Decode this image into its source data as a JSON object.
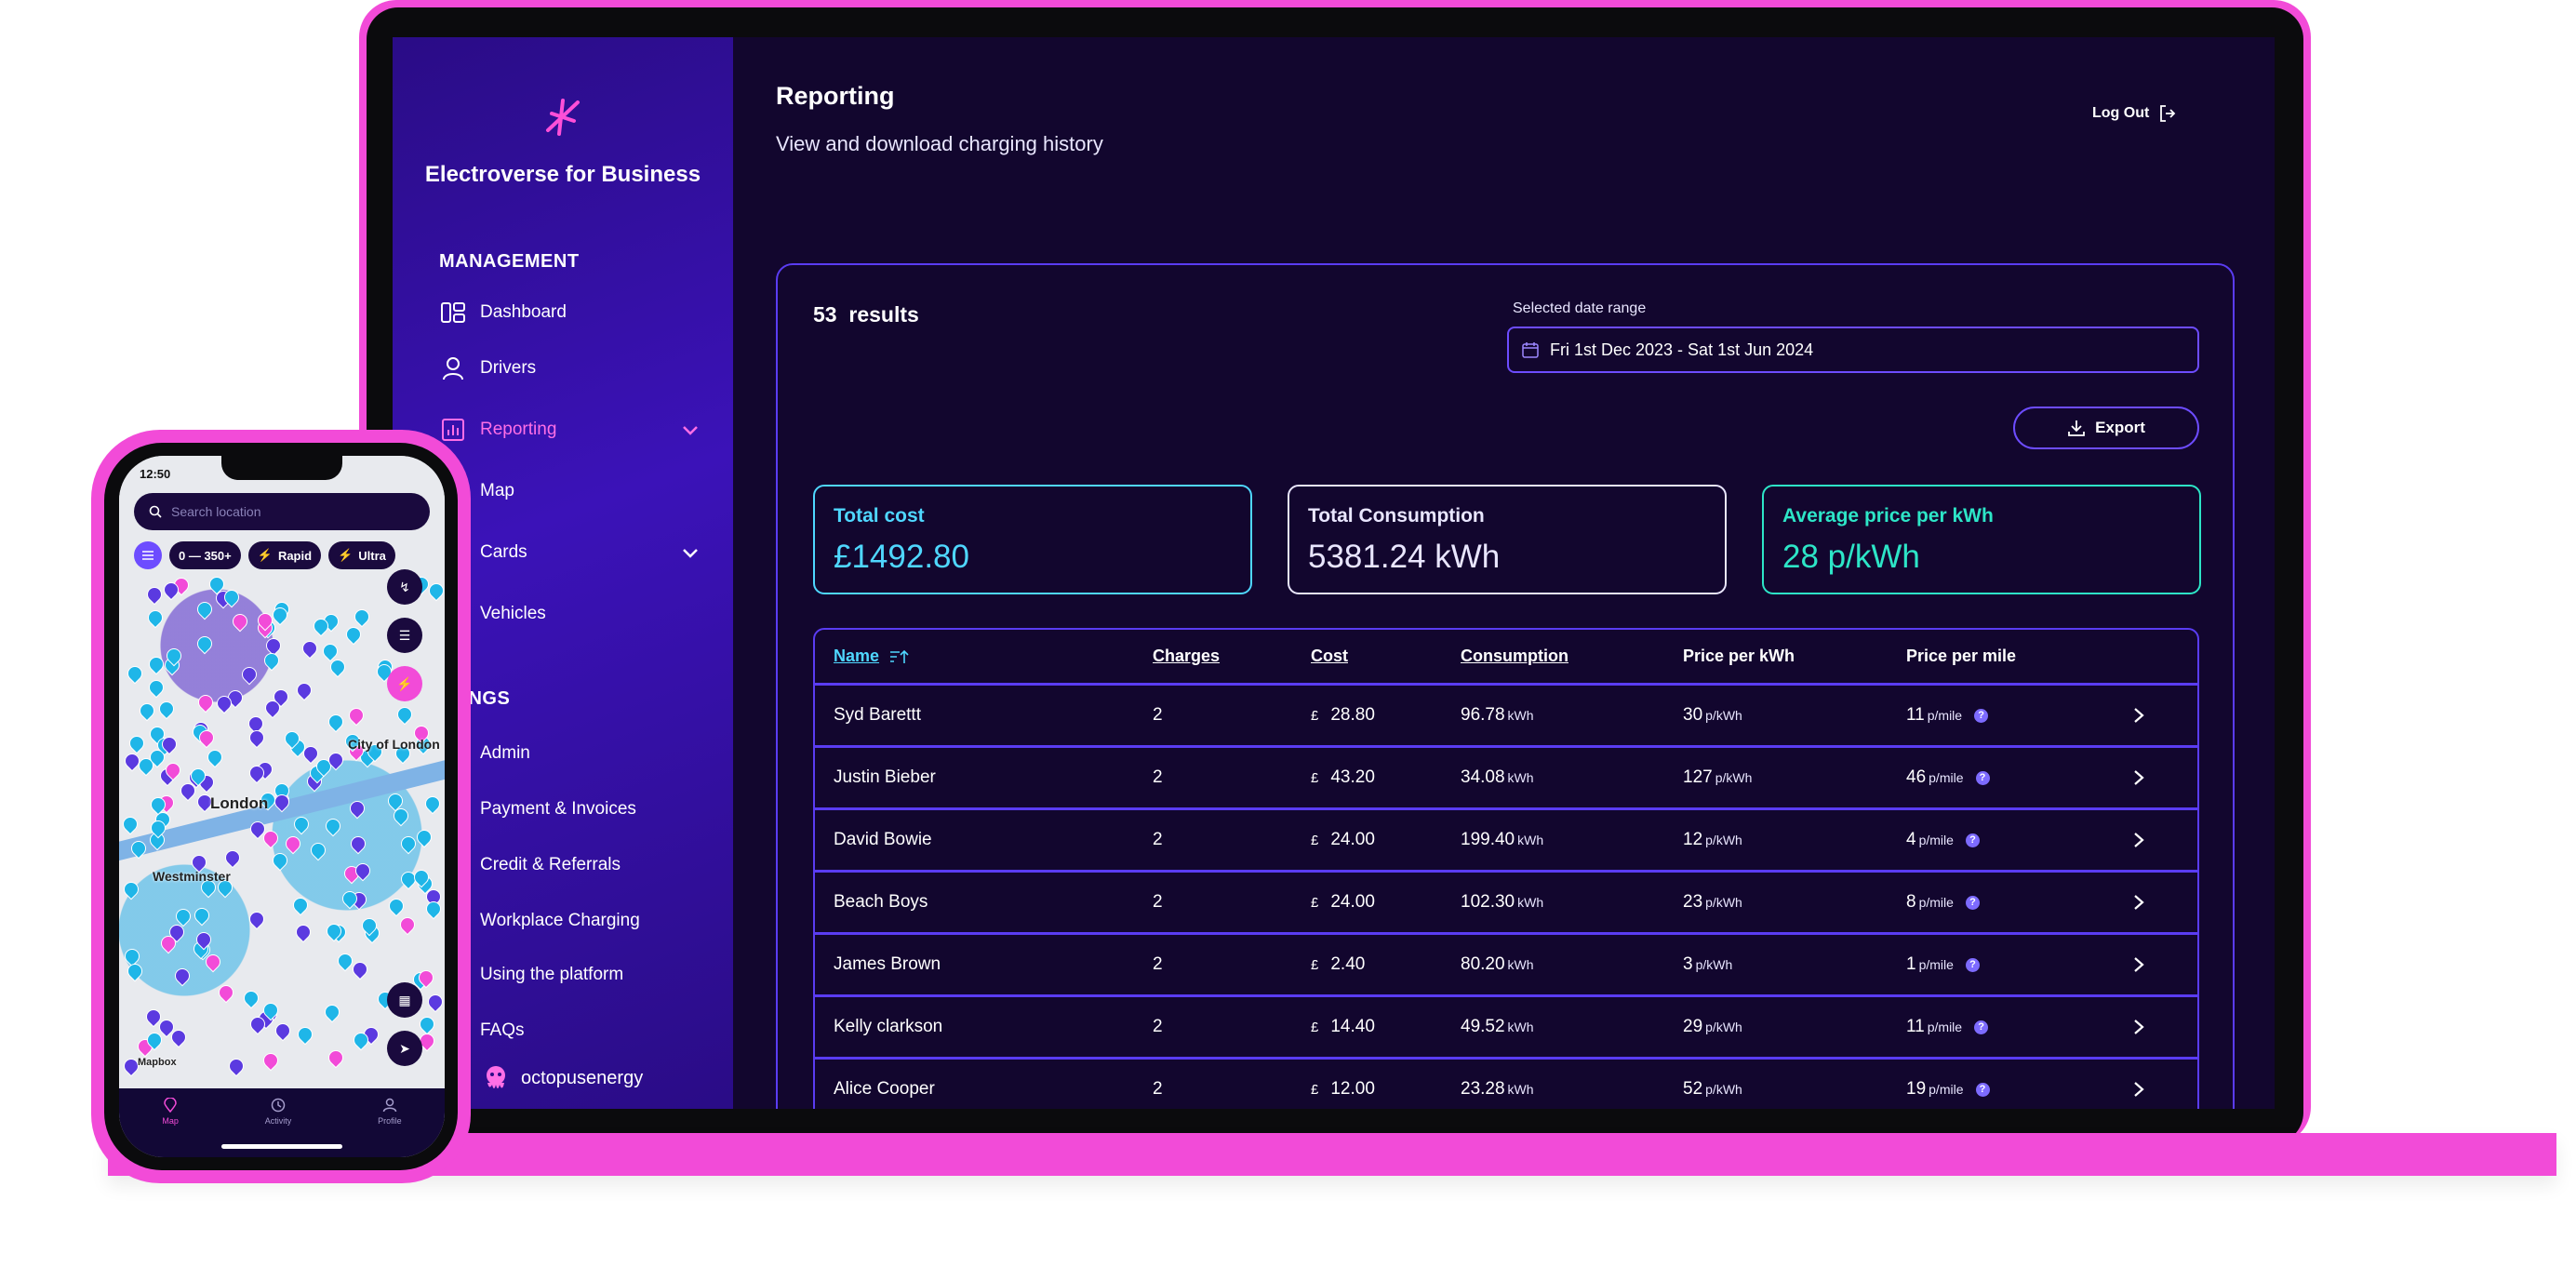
{
  "app": {
    "brand": "Electroverse for Business",
    "footer_brand": "octopusenergy"
  },
  "sidebar": {
    "management_heading": "MANAGEMENT",
    "settings_heading": "TTINGS",
    "items": [
      {
        "label": "Dashboard",
        "icon": "dashboard-icon"
      },
      {
        "label": "Drivers",
        "icon": "user-icon"
      },
      {
        "label": "Reporting",
        "icon": "bar-chart-icon",
        "active": true
      },
      {
        "label": "Map",
        "icon": "map-icon"
      },
      {
        "label": "Cards",
        "icon": "card-icon"
      },
      {
        "label": "Vehicles",
        "icon": "car-icon"
      }
    ],
    "settings_items": [
      {
        "label": "Admin"
      },
      {
        "label": "Payment & Invoices"
      },
      {
        "label": "Credit & Referrals"
      },
      {
        "label": "Workplace Charging"
      },
      {
        "label": "Using the platform"
      },
      {
        "label": "FAQs"
      }
    ]
  },
  "header": {
    "title": "Reporting",
    "subtitle": "View and download charging history",
    "logout_label": "Log Out"
  },
  "report": {
    "results_count": "53",
    "results_label": "results",
    "date_range_label": "Selected date range",
    "date_range_value": "Fri 1st Dec 2023 - Sat 1st Jun 2024",
    "export_label": "Export"
  },
  "stats": {
    "total_cost": {
      "label": "Total cost",
      "value": "£1492.80"
    },
    "total_consumption": {
      "label": "Total Consumption",
      "value": "5381.24 kWh"
    },
    "avg_price": {
      "label": "Average price per kWh",
      "value": "28 p/kWh"
    }
  },
  "table": {
    "columns": [
      "Name",
      "Charges",
      "Cost",
      "Consumption",
      "Price per kWh",
      "Price per mile"
    ],
    "rows": [
      {
        "name": "Syd Barettt",
        "charges": "2",
        "cost": "28.80",
        "consumption": "96.78",
        "ppk": "30",
        "ppm": "11"
      },
      {
        "name": "Justin Bieber",
        "charges": "2",
        "cost": "43.20",
        "consumption": "34.08",
        "ppk": "127",
        "ppm": "46"
      },
      {
        "name": "David Bowie",
        "charges": "2",
        "cost": "24.00",
        "consumption": "199.40",
        "ppk": "12",
        "ppm": "4"
      },
      {
        "name": "Beach Boys",
        "charges": "2",
        "cost": "24.00",
        "consumption": "102.30",
        "ppk": "23",
        "ppm": "8"
      },
      {
        "name": "James Brown",
        "charges": "2",
        "cost": "2.40",
        "consumption": "80.20",
        "ppk": "3",
        "ppm": "1"
      },
      {
        "name": "Kelly clarkson",
        "charges": "2",
        "cost": "14.40",
        "consumption": "49.52",
        "ppk": "29",
        "ppm": "11"
      },
      {
        "name": "Alice Cooper",
        "charges": "2",
        "cost": "12.00",
        "consumption": "23.28",
        "ppk": "52",
        "ppm": "19"
      }
    ],
    "units": {
      "currency": "£",
      "kwh": "kWh",
      "ppk": "p/kWh",
      "ppm": "p/mile"
    }
  },
  "phone": {
    "time": "12:50",
    "search_placeholder": "Search location",
    "filter_range": "0 — 350+",
    "filter_rapid": "Rapid",
    "filter_ultra": "Ultra",
    "map_labels": [
      "City of London",
      "London",
      "Westminster",
      "Mapbox"
    ],
    "tabs": [
      "Map",
      "Activity",
      "Profile"
    ]
  },
  "colors": {
    "accent_pink": "#f24bd8",
    "accent_purple": "#5a3cf2",
    "cyan": "#4fd7ff",
    "teal": "#2de5c7"
  }
}
